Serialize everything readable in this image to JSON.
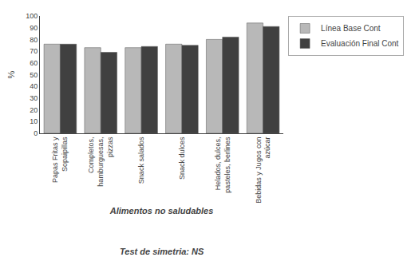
{
  "chart_data": {
    "type": "bar",
    "categories": [
      "Papas Fritas y\nSopaipillas",
      "Completos,\nhamburguesas,\npizzas",
      "Snack salados",
      "Snack dulces",
      "Helados, dulces,\npasteles, berlines",
      "Bebidas y Jugos con\nazúcar"
    ],
    "series": [
      {
        "name": "Línea Base Cont",
        "color": "#b8b8b8",
        "values": [
          76,
          73,
          73,
          76,
          80,
          94
        ]
      },
      {
        "name": "Evaluación Final Cont",
        "color": "#404040",
        "values": [
          76,
          69,
          74,
          75,
          82,
          91
        ]
      }
    ],
    "xlabel": "Alimentos no saludables",
    "ylabel": "%",
    "annotations": [
      "Test de simetria: NS"
    ],
    "ylim": [
      0,
      100
    ],
    "yticks": [
      0,
      10,
      20,
      30,
      40,
      50,
      60,
      70,
      80,
      90,
      100
    ],
    "grid": false,
    "legend": "upper right"
  }
}
